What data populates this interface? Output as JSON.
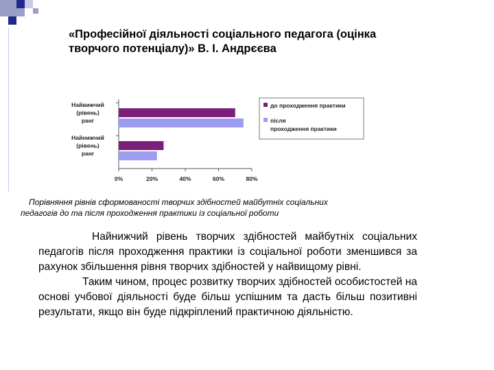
{
  "slide": {
    "title": "«Професійної діяльності соціального педагога (оцінка творчого потенціалу)» В. І. Андрєєва",
    "caption_line1": "Порівняння рівнів сформованості творчих здібностей майбутніх соціальних",
    "caption_line2": "педагогів до та після проходження практики із соціальної роботи",
    "paragraph1": "Найнижчий рівень творчих здібностей майбутніх соціальних педагогів після проходження практики із соціальної роботи зменшився за рахунок збільшення рівня творчих здібностей у найвищому рівні.",
    "paragraph2": "Таким чином, процес розвитку творчих здібностей особистостей на основі учбової діяльності буде більш успішним та дасть більш позитивні результати, якщо він буде підкріплений практичною діяльністю.",
    "colors": {
      "decor_blue": "#1f2a8c",
      "decor_gray": "#9a9fc7"
    }
  },
  "chart_data": {
    "type": "bar",
    "orientation": "horizontal",
    "categories": [
      [
        "Найвижчий",
        "(рівень)",
        "ранг"
      ],
      [
        "Найнижчий",
        "(рівень)",
        "ранг"
      ]
    ],
    "series": [
      {
        "name": "до проходження практики",
        "values": [
          70,
          27
        ],
        "color": "#7b1f7b"
      },
      {
        "name": "після проходження практики",
        "values": [
          75,
          23
        ],
        "color": "#9c9cf0"
      }
    ],
    "xlim": [
      0,
      80
    ],
    "xticks": [
      "0%",
      "20%",
      "40%",
      "60%",
      "80%"
    ],
    "legend_position": "right",
    "grid": false
  }
}
